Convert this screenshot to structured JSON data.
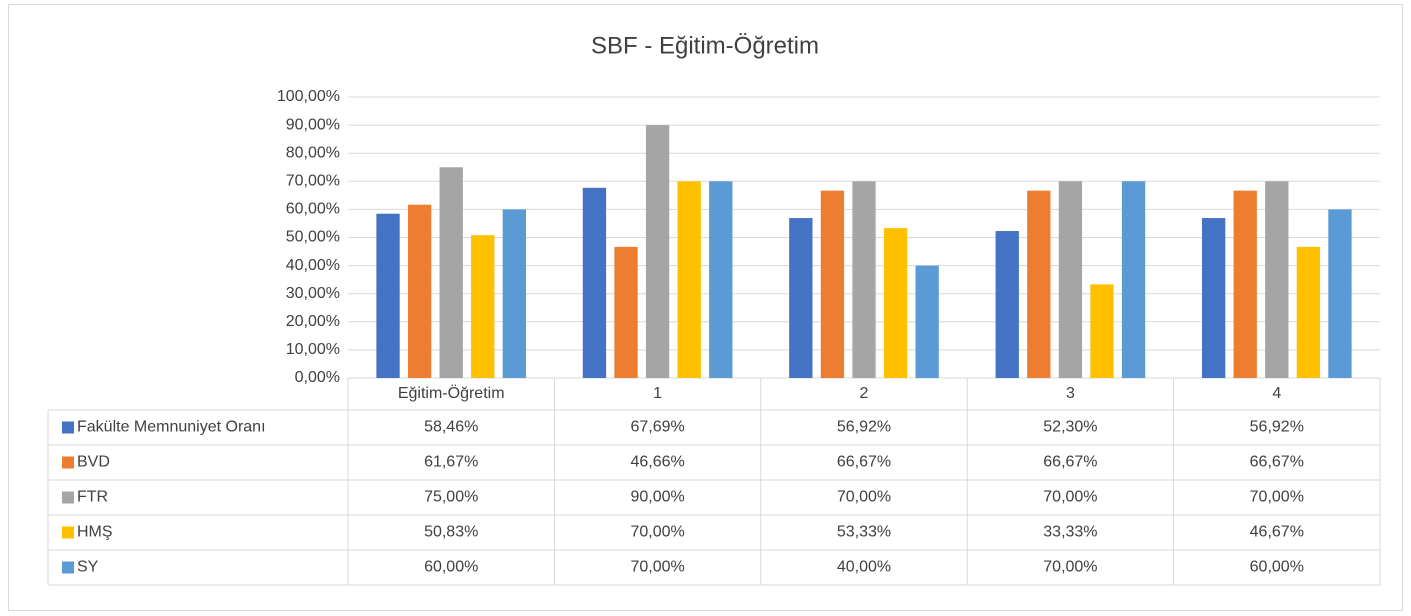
{
  "chart_data": {
    "type": "bar",
    "title": "SBF - Eğitim-Öğretim",
    "categories": [
      "Eğitim-Öğretim",
      "1",
      "2",
      "3",
      "4"
    ],
    "series": [
      {
        "name": "Fakülte Memnuniyet Oranı",
        "color": "#4472c4",
        "values": [
          58.46,
          67.69,
          56.92,
          52.3,
          56.92
        ],
        "value_labels": [
          "58,46%",
          "67,69%",
          "56,92%",
          "52,30%",
          "56,92%"
        ]
      },
      {
        "name": "BVD",
        "color": "#ed7d31",
        "values": [
          61.67,
          46.66,
          66.67,
          66.67,
          66.67
        ],
        "value_labels": [
          "61,67%",
          "46,66%",
          "66,67%",
          "66,67%",
          "66,67%"
        ]
      },
      {
        "name": "FTR",
        "color": "#a5a5a5",
        "values": [
          75.0,
          90.0,
          70.0,
          70.0,
          70.0
        ],
        "value_labels": [
          "75,00%",
          "90,00%",
          "70,00%",
          "70,00%",
          "70,00%"
        ]
      },
      {
        "name": "HMŞ",
        "color": "#ffc000",
        "values": [
          50.83,
          70.0,
          53.33,
          33.33,
          46.67
        ],
        "value_labels": [
          "50,83%",
          "70,00%",
          "53,33%",
          "33,33%",
          "46,67%"
        ]
      },
      {
        "name": "SY",
        "color": "#5b9bd5",
        "values": [
          60.0,
          70.0,
          40.0,
          70.0,
          60.0
        ],
        "value_labels": [
          "60,00%",
          "70,00%",
          "40,00%",
          "70,00%",
          "60,00%"
        ]
      }
    ],
    "ylim": [
      0,
      100
    ],
    "yticks": [
      {
        "value": 0,
        "label": "0,00%"
      },
      {
        "value": 10,
        "label": "10,00%"
      },
      {
        "value": 20,
        "label": "20,00%"
      },
      {
        "value": 30,
        "label": "30,00%"
      },
      {
        "value": 40,
        "label": "40,00%"
      },
      {
        "value": 50,
        "label": "50,00%"
      },
      {
        "value": 60,
        "label": "60,00%"
      },
      {
        "value": 70,
        "label": "70,00%"
      },
      {
        "value": 80,
        "label": "80,00%"
      },
      {
        "value": 90,
        "label": "90,00%"
      },
      {
        "value": 100,
        "label": "100,00%"
      }
    ],
    "grid": true
  }
}
